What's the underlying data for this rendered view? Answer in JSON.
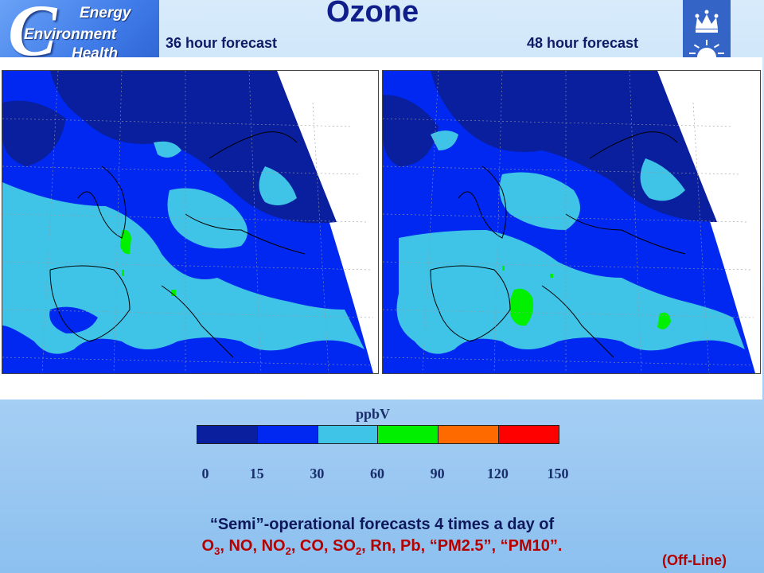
{
  "logo": {
    "letter": "C",
    "line1": "Energy",
    "line2": "Environment",
    "line3": "Health"
  },
  "title": "Ozone",
  "forecast_left": "36 hour forecast",
  "forecast_right": "48 hour forecast",
  "colorbar": {
    "unit": "ppbV",
    "colors": [
      "#0a1f9e",
      "#0028f0",
      "#3fc3e6",
      "#00f000",
      "#ff6a00",
      "#ff0000"
    ],
    "ticks": [
      "0",
      "15",
      "30",
      "60",
      "90",
      "120",
      "150"
    ]
  },
  "caption": {
    "line1": "“Semi”-operational forecasts 4 times a day of",
    "line2_parts": [
      "O",
      "3",
      ", NO, NO",
      "2",
      ", CO, SO",
      "2",
      ", Rn, Pb, “PM2.5”, “PM10”."
    ]
  },
  "offline": "(Off-Line)",
  "map_colors": {
    "dark": "#0a1f9e",
    "mid": "#0028f0",
    "light": "#3fc3e6",
    "green": "#00f000"
  }
}
